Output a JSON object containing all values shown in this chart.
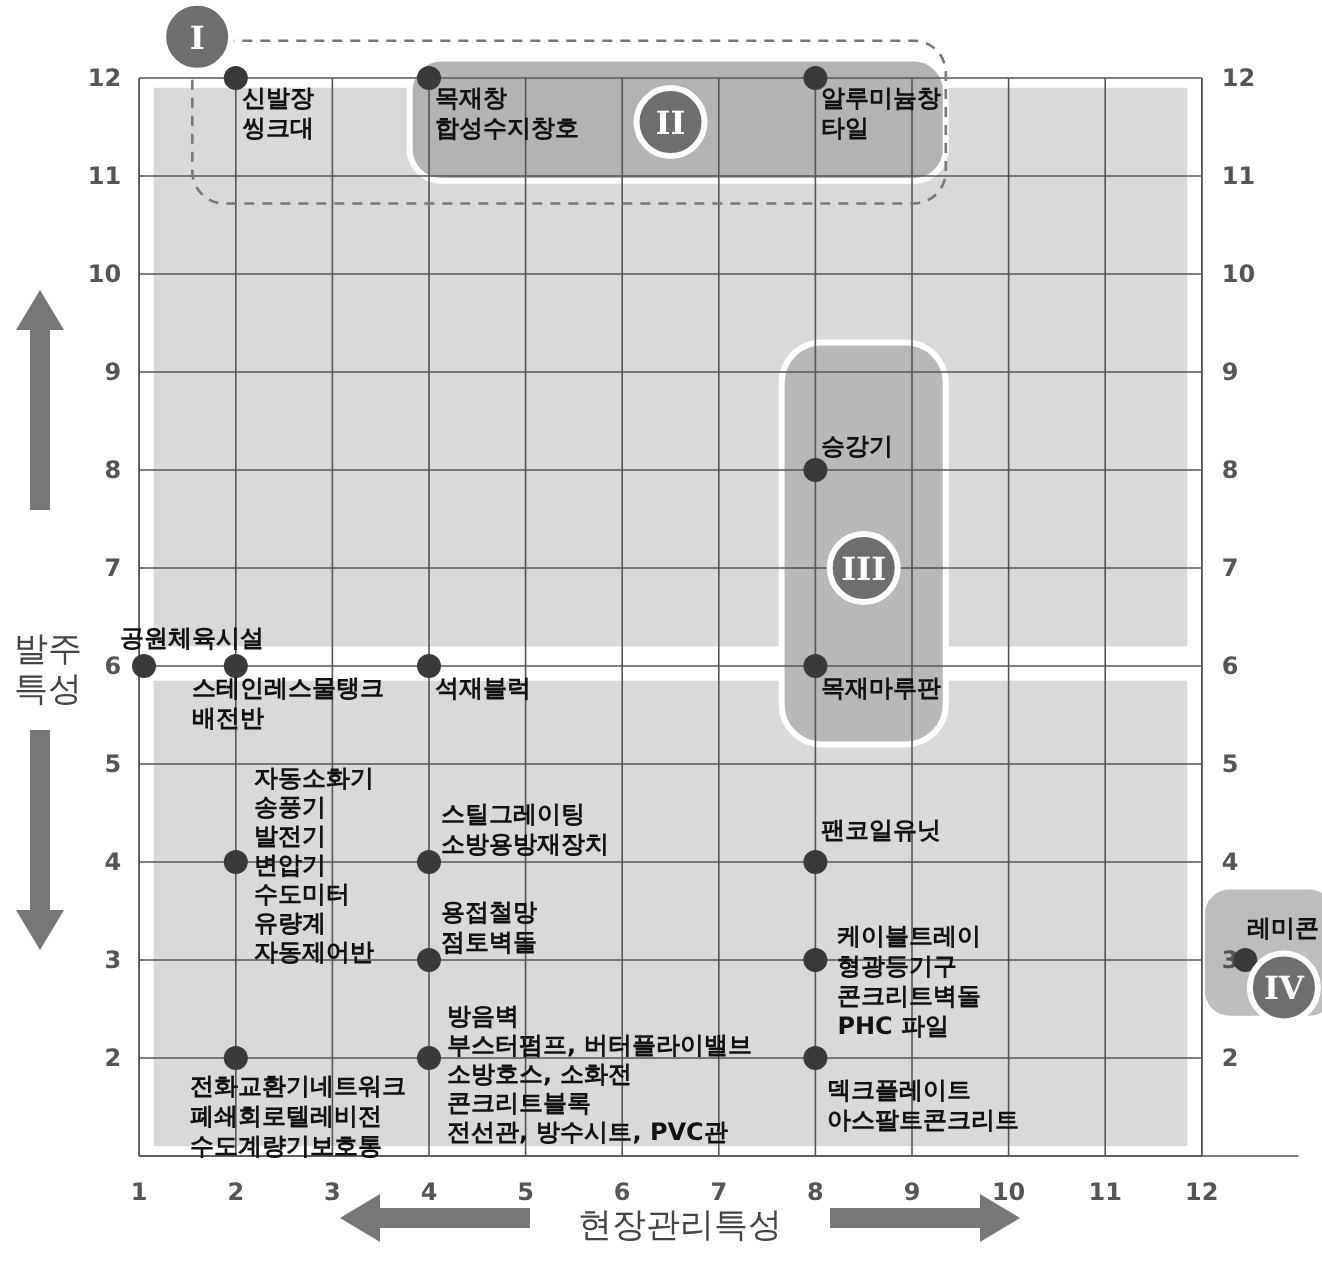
{
  "chart_data": {
    "type": "scatter",
    "xlabel": "현장관리특성",
    "ylabel": "발주\n특성",
    "color": "#3a3a3a",
    "marker": "circle",
    "grid": true,
    "x": [
      2,
      4,
      8,
      8,
      1.05,
      2,
      4,
      8,
      2,
      4,
      8,
      4,
      8,
      12.45,
      2,
      4,
      8
    ],
    "values": [
      12,
      12,
      12,
      8,
      6,
      6,
      6,
      6,
      4,
      4,
      4,
      3,
      3,
      3,
      2,
      2,
      2
    ],
    "xlim": [
      1,
      13
    ],
    "ylim": [
      1,
      12
    ],
    "y2lim": [
      1,
      12
    ],
    "xticks": [
      1,
      2,
      3,
      4,
      5,
      6,
      7,
      8,
      9,
      10,
      11,
      12
    ],
    "yticks": [
      {
        "value": 1,
        "label": null
      },
      2,
      3,
      4,
      5,
      6,
      7,
      8,
      9,
      10,
      11,
      12
    ],
    "y2ticks": [
      2,
      3,
      4,
      5,
      6,
      7,
      8,
      9,
      10,
      11,
      12
    ],
    "annotations": [
      {
        "text": "신발장\n씽크대",
        "x": 2,
        "y": 12
      },
      {
        "text": "목재창\n합성수지창호",
        "x": 4,
        "y": 12
      },
      {
        "text": "알루미늄창\n타일",
        "x": 8,
        "y": 12
      },
      {
        "text": "승강기",
        "x": 8,
        "y": 8
      },
      {
        "text": "공원체육시설",
        "x": 1.05,
        "y": 6
      },
      {
        "text": "스테인레스물탱크\n배전반",
        "x": 2,
        "y": 6
      },
      {
        "text": "석재블럭",
        "x": 4,
        "y": 6
      },
      {
        "text": "목재마루판",
        "x": 8,
        "y": 6
      },
      {
        "text": "자동소화기\n송풍기\n발전기\n변압기\n수도미터\n유량계\n자동제어반",
        "x": 2,
        "y": 4
      },
      {
        "text": "스틸그레이팅\n소방용방재장치",
        "x": 4,
        "y": 4
      },
      {
        "text": "팬코일유닛",
        "x": 8,
        "y": 4
      },
      {
        "text": "용접철망\n점토벽돌",
        "x": 4,
        "y": 3
      },
      {
        "text": "케이블트레이\n형광등기구\n콘크리트벽돌\nPHC 파일",
        "x": 8,
        "y": 3
      },
      {
        "text": "레미콘",
        "x": 12.45,
        "y": 3
      },
      {
        "text": "전화교환기네트워크\n폐쇄회로텔레비전\n수도계량기보호통",
        "x": 2,
        "y": 2
      },
      {
        "text": "방음벽\n부스터펌프, 버터플라이밸브\n소방호스, 소화전\n콘크리트블록\n전선관, 방수시트, PVC관",
        "x": 4,
        "y": 2
      },
      {
        "text": "덱크플레이트\n아스팔트콘크리트",
        "x": 8,
        "y": 2
      },
      "I",
      "II",
      "III",
      "IV"
    ]
  }
}
